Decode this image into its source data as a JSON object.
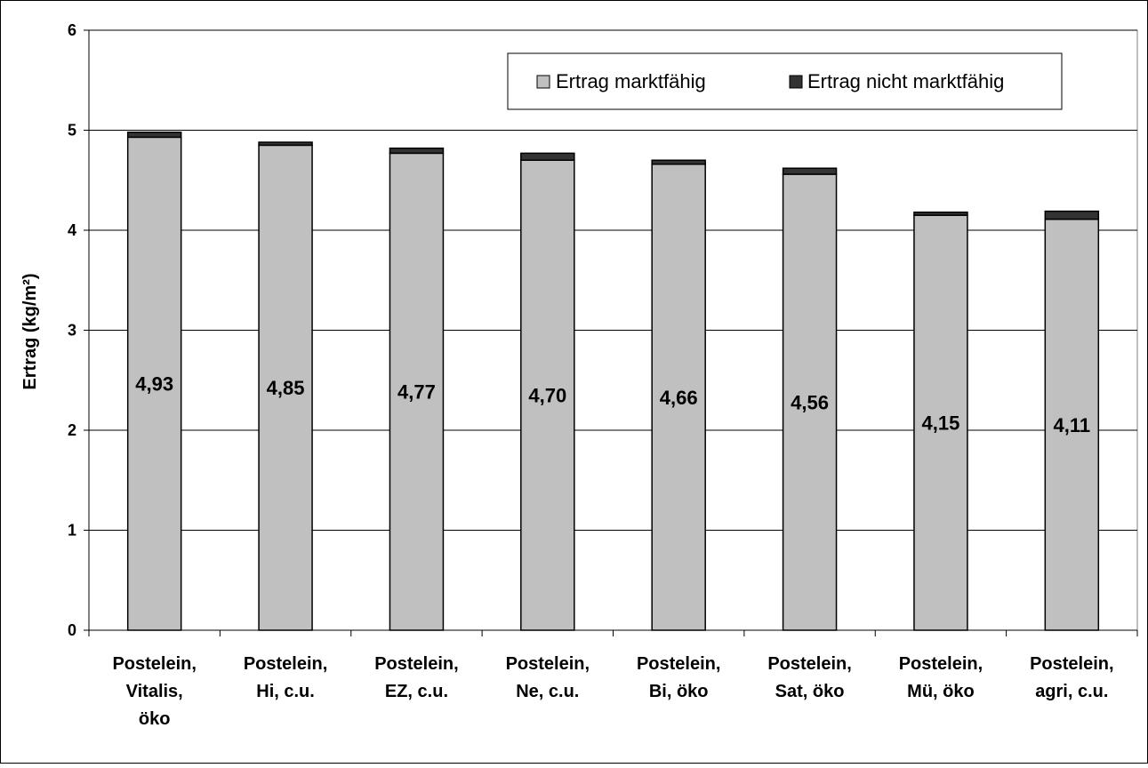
{
  "chart_data": {
    "type": "bar",
    "stacked": true,
    "title": "",
    "xlabel": "",
    "ylabel": "Ertrag (kg/m²)",
    "ylim": [
      0,
      6
    ],
    "yticks": [
      0,
      1,
      2,
      3,
      4,
      5,
      6
    ],
    "grid": true,
    "legend_position": "top-right",
    "categories": [
      [
        "Postelein,",
        "Vitalis,",
        "öko"
      ],
      [
        "Postelein,",
        "Hi, c.u."
      ],
      [
        "Postelein,",
        "EZ, c.u."
      ],
      [
        "Postelein,",
        "Ne, c.u."
      ],
      [
        "Postelein,",
        "Bi, öko"
      ],
      [
        "Postelein,",
        "Sat, öko"
      ],
      [
        "Postelein,",
        "Mü, öko"
      ],
      [
        "Postelein,",
        "agri, c.u."
      ]
    ],
    "series": [
      {
        "name": "Ertrag marktfähig",
        "color": "#c0c0c0",
        "values": [
          4.93,
          4.85,
          4.77,
          4.7,
          4.66,
          4.56,
          4.15,
          4.11
        ],
        "labels": [
          "4,93",
          "4,85",
          "4,77",
          "4,70",
          "4,66",
          "4,56",
          "4,15",
          "4,11"
        ]
      },
      {
        "name": "Ertrag nicht marktfähig",
        "color": "#333333",
        "values": [
          0.05,
          0.03,
          0.05,
          0.07,
          0.04,
          0.06,
          0.03,
          0.08
        ]
      }
    ]
  }
}
